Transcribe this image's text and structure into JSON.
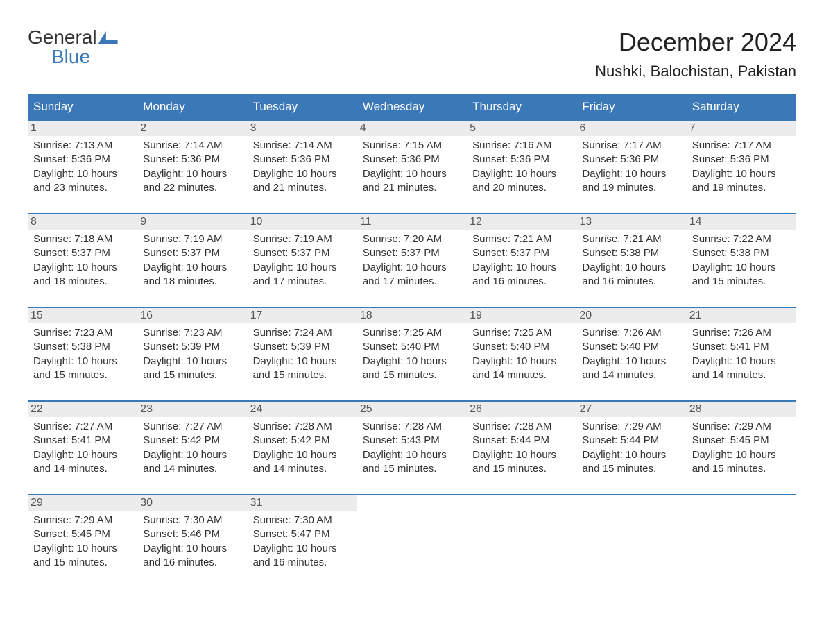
{
  "brand": {
    "line1": "General",
    "line2": "Blue"
  },
  "title": "December 2024",
  "location": "Nushki, Balochistan, Pakistan",
  "colors": {
    "accent": "#3a78b8",
    "dayhead_bg": "#3a78b8",
    "dayhead_fg": "#ffffff",
    "daynum_bg": "#ececec",
    "text": "#333333",
    "background": "#ffffff"
  },
  "typography": {
    "title_fontsize": 36,
    "location_fontsize": 22,
    "dayhead_fontsize": 17,
    "body_fontsize": 15,
    "font_family": "Arial"
  },
  "layout": {
    "columns": 7,
    "rows": 5,
    "week_border_top": "2px solid #3a78b8"
  },
  "day_headers": [
    "Sunday",
    "Monday",
    "Tuesday",
    "Wednesday",
    "Thursday",
    "Friday",
    "Saturday"
  ],
  "labels": {
    "sunrise": "Sunrise:",
    "sunset": "Sunset:",
    "daylight": "Daylight:"
  },
  "days": [
    {
      "n": 1,
      "sunrise": "7:13 AM",
      "sunset": "5:36 PM",
      "daylight": "10 hours and 23 minutes."
    },
    {
      "n": 2,
      "sunrise": "7:14 AM",
      "sunset": "5:36 PM",
      "daylight": "10 hours and 22 minutes."
    },
    {
      "n": 3,
      "sunrise": "7:14 AM",
      "sunset": "5:36 PM",
      "daylight": "10 hours and 21 minutes."
    },
    {
      "n": 4,
      "sunrise": "7:15 AM",
      "sunset": "5:36 PM",
      "daylight": "10 hours and 21 minutes."
    },
    {
      "n": 5,
      "sunrise": "7:16 AM",
      "sunset": "5:36 PM",
      "daylight": "10 hours and 20 minutes."
    },
    {
      "n": 6,
      "sunrise": "7:17 AM",
      "sunset": "5:36 PM",
      "daylight": "10 hours and 19 minutes."
    },
    {
      "n": 7,
      "sunrise": "7:17 AM",
      "sunset": "5:36 PM",
      "daylight": "10 hours and 19 minutes."
    },
    {
      "n": 8,
      "sunrise": "7:18 AM",
      "sunset": "5:37 PM",
      "daylight": "10 hours and 18 minutes."
    },
    {
      "n": 9,
      "sunrise": "7:19 AM",
      "sunset": "5:37 PM",
      "daylight": "10 hours and 18 minutes."
    },
    {
      "n": 10,
      "sunrise": "7:19 AM",
      "sunset": "5:37 PM",
      "daylight": "10 hours and 17 minutes."
    },
    {
      "n": 11,
      "sunrise": "7:20 AM",
      "sunset": "5:37 PM",
      "daylight": "10 hours and 17 minutes."
    },
    {
      "n": 12,
      "sunrise": "7:21 AM",
      "sunset": "5:37 PM",
      "daylight": "10 hours and 16 minutes."
    },
    {
      "n": 13,
      "sunrise": "7:21 AM",
      "sunset": "5:38 PM",
      "daylight": "10 hours and 16 minutes."
    },
    {
      "n": 14,
      "sunrise": "7:22 AM",
      "sunset": "5:38 PM",
      "daylight": "10 hours and 15 minutes."
    },
    {
      "n": 15,
      "sunrise": "7:23 AM",
      "sunset": "5:38 PM",
      "daylight": "10 hours and 15 minutes."
    },
    {
      "n": 16,
      "sunrise": "7:23 AM",
      "sunset": "5:39 PM",
      "daylight": "10 hours and 15 minutes."
    },
    {
      "n": 17,
      "sunrise": "7:24 AM",
      "sunset": "5:39 PM",
      "daylight": "10 hours and 15 minutes."
    },
    {
      "n": 18,
      "sunrise": "7:25 AM",
      "sunset": "5:40 PM",
      "daylight": "10 hours and 15 minutes."
    },
    {
      "n": 19,
      "sunrise": "7:25 AM",
      "sunset": "5:40 PM",
      "daylight": "10 hours and 14 minutes."
    },
    {
      "n": 20,
      "sunrise": "7:26 AM",
      "sunset": "5:40 PM",
      "daylight": "10 hours and 14 minutes."
    },
    {
      "n": 21,
      "sunrise": "7:26 AM",
      "sunset": "5:41 PM",
      "daylight": "10 hours and 14 minutes."
    },
    {
      "n": 22,
      "sunrise": "7:27 AM",
      "sunset": "5:41 PM",
      "daylight": "10 hours and 14 minutes."
    },
    {
      "n": 23,
      "sunrise": "7:27 AM",
      "sunset": "5:42 PM",
      "daylight": "10 hours and 14 minutes."
    },
    {
      "n": 24,
      "sunrise": "7:28 AM",
      "sunset": "5:42 PM",
      "daylight": "10 hours and 14 minutes."
    },
    {
      "n": 25,
      "sunrise": "7:28 AM",
      "sunset": "5:43 PM",
      "daylight": "10 hours and 15 minutes."
    },
    {
      "n": 26,
      "sunrise": "7:28 AM",
      "sunset": "5:44 PM",
      "daylight": "10 hours and 15 minutes."
    },
    {
      "n": 27,
      "sunrise": "7:29 AM",
      "sunset": "5:44 PM",
      "daylight": "10 hours and 15 minutes."
    },
    {
      "n": 28,
      "sunrise": "7:29 AM",
      "sunset": "5:45 PM",
      "daylight": "10 hours and 15 minutes."
    },
    {
      "n": 29,
      "sunrise": "7:29 AM",
      "sunset": "5:45 PM",
      "daylight": "10 hours and 15 minutes."
    },
    {
      "n": 30,
      "sunrise": "7:30 AM",
      "sunset": "5:46 PM",
      "daylight": "10 hours and 16 minutes."
    },
    {
      "n": 31,
      "sunrise": "7:30 AM",
      "sunset": "5:47 PM",
      "daylight": "10 hours and 16 minutes."
    }
  ]
}
